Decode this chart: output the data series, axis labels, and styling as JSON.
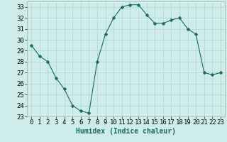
{
  "x": [
    0,
    1,
    2,
    3,
    4,
    5,
    6,
    7,
    8,
    9,
    10,
    11,
    12,
    13,
    14,
    15,
    16,
    17,
    18,
    19,
    20,
    21,
    22,
    23
  ],
  "y": [
    29.5,
    28.5,
    28.0,
    26.5,
    25.5,
    24.0,
    23.5,
    23.3,
    28.0,
    30.5,
    32.0,
    33.0,
    33.2,
    33.2,
    32.3,
    31.5,
    31.5,
    31.8,
    32.0,
    31.0,
    30.5,
    27.0,
    26.8,
    27.0
  ],
  "line_color": "#1a6b5a",
  "marker": "D",
  "marker_size": 2.5,
  "bg_color": "#ceecea",
  "grid_color": "#b0d4d0",
  "xlabel": "Humidex (Indice chaleur)",
  "ylim": [
    23,
    33.5
  ],
  "xlim": [
    -0.5,
    23.5
  ],
  "yticks": [
    23,
    24,
    25,
    26,
    27,
    28,
    29,
    30,
    31,
    32,
    33
  ],
  "xticks": [
    0,
    1,
    2,
    3,
    4,
    5,
    6,
    7,
    8,
    9,
    10,
    11,
    12,
    13,
    14,
    15,
    16,
    17,
    18,
    19,
    20,
    21,
    22,
    23
  ],
  "label_fontsize": 7,
  "tick_fontsize": 6.5
}
